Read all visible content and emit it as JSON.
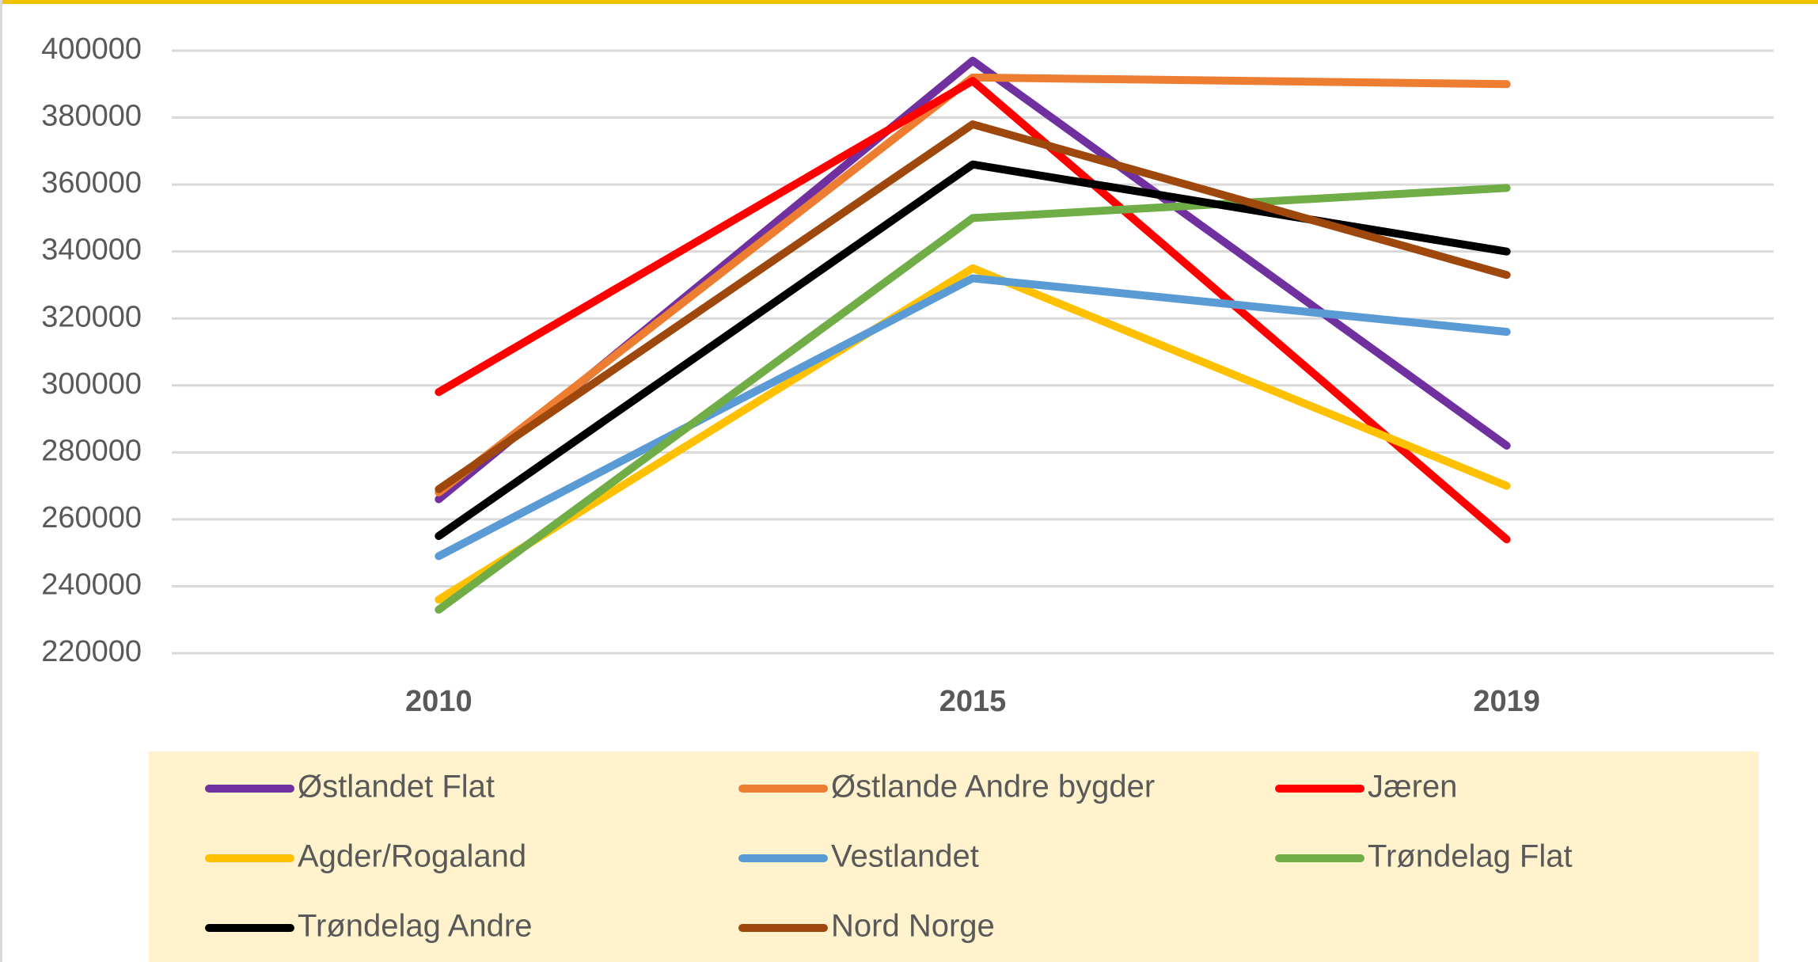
{
  "chart_data": {
    "type": "line",
    "categories": [
      "2010",
      "2015",
      "2019"
    ],
    "series": [
      {
        "name": "Østlandet Flat",
        "color": "#7030a0",
        "values": [
          266000,
          397000,
          282000
        ]
      },
      {
        "name": "Østlande Andre bygder",
        "color": "#ed7d31",
        "values": [
          268000,
          392000,
          390000
        ]
      },
      {
        "name": "Jæren",
        "color": "#ff0000",
        "values": [
          298000,
          391000,
          254000
        ]
      },
      {
        "name": "Agder/Rogaland",
        "color": "#ffc000",
        "values": [
          236000,
          335000,
          270000
        ]
      },
      {
        "name": "Vestlandet",
        "color": "#5b9bd5",
        "values": [
          249000,
          332000,
          316000
        ]
      },
      {
        "name": "Trøndelag Flat",
        "color": "#70ad47",
        "values": [
          233000,
          350000,
          359000
        ]
      },
      {
        "name": "Trøndelag Andre",
        "color": "#000000",
        "values": [
          255000,
          366000,
          340000
        ]
      },
      {
        "name": "Nord Norge",
        "color": "#9e480e",
        "values": [
          269000,
          378000,
          333000
        ]
      }
    ],
    "ylim": [
      220000,
      400000
    ],
    "yticks": [
      220000,
      240000,
      260000,
      280000,
      300000,
      320000,
      340000,
      360000,
      380000,
      400000
    ],
    "grid": true,
    "legend": "bottom"
  }
}
